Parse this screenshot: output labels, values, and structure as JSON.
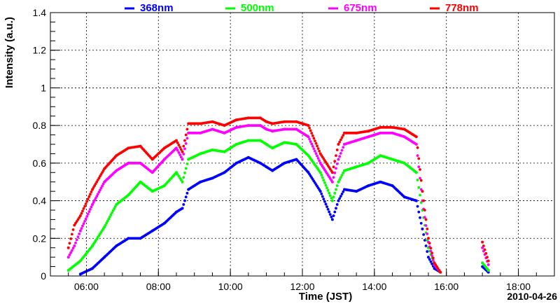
{
  "chart_data": {
    "type": "scatter",
    "xlabel": "Time (JST)",
    "ylabel": "Intensity (a.u.)",
    "xlim": [
      "05:00",
      "19:00"
    ],
    "ylim": [
      0,
      1.4
    ],
    "xticks": [
      "06:00",
      "08:00",
      "10:00",
      "12:00",
      "14:00",
      "16:00",
      "18:00"
    ],
    "yticks": [
      "0",
      "0.2",
      "0.4",
      "0.6",
      "0.8",
      "1",
      "1.2",
      "1.4"
    ],
    "grid": true,
    "legend_placement": "top",
    "date_label": "2010-04-26",
    "series": [
      {
        "name": "368nm",
        "color": "#0000ff",
        "points": [
          [
            "05:50",
            0.01
          ],
          [
            "06:10",
            0.04
          ],
          [
            "06:30",
            0.1
          ],
          [
            "06:50",
            0.16
          ],
          [
            "07:10",
            0.2
          ],
          [
            "07:30",
            0.2
          ],
          [
            "07:50",
            0.24
          ],
          [
            "08:10",
            0.28
          ],
          [
            "08:30",
            0.34
          ],
          [
            "08:40",
            0.36
          ],
          [
            "08:50",
            0.46
          ],
          [
            "09:10",
            0.5
          ],
          [
            "09:30",
            0.52
          ],
          [
            "09:50",
            0.55
          ],
          [
            "10:10",
            0.6
          ],
          [
            "10:30",
            0.63
          ],
          [
            "10:50",
            0.6
          ],
          [
            "11:00",
            0.58
          ],
          [
            "11:10",
            0.56
          ],
          [
            "11:30",
            0.6
          ],
          [
            "11:50",
            0.62
          ],
          [
            "12:10",
            0.55
          ],
          [
            "12:30",
            0.45
          ],
          [
            "12:50",
            0.3
          ],
          [
            "13:00",
            0.4
          ],
          [
            "13:10",
            0.46
          ],
          [
            "13:30",
            0.45
          ],
          [
            "13:50",
            0.48
          ],
          [
            "14:10",
            0.5
          ],
          [
            "14:30",
            0.48
          ],
          [
            "14:50",
            0.42
          ],
          [
            "15:10",
            0.4
          ],
          [
            "15:20",
            0.25
          ],
          [
            "15:30",
            0.1
          ],
          [
            "15:40",
            0.04
          ],
          [
            "15:50",
            0.02
          ],
          [
            "17:00",
            0.05
          ],
          [
            "17:10",
            0.02
          ]
        ]
      },
      {
        "name": "500nm",
        "color": "#00ff00",
        "points": [
          [
            "05:30",
            0.03
          ],
          [
            "05:50",
            0.08
          ],
          [
            "06:10",
            0.16
          ],
          [
            "06:30",
            0.26
          ],
          [
            "06:50",
            0.38
          ],
          [
            "07:10",
            0.43
          ],
          [
            "07:30",
            0.5
          ],
          [
            "07:50",
            0.45
          ],
          [
            "08:10",
            0.48
          ],
          [
            "08:30",
            0.55
          ],
          [
            "08:40",
            0.5
          ],
          [
            "08:50",
            0.62
          ],
          [
            "09:10",
            0.65
          ],
          [
            "09:30",
            0.67
          ],
          [
            "09:50",
            0.66
          ],
          [
            "10:10",
            0.7
          ],
          [
            "10:30",
            0.72
          ],
          [
            "10:50",
            0.72
          ],
          [
            "11:00",
            0.7
          ],
          [
            "11:10",
            0.68
          ],
          [
            "11:30",
            0.71
          ],
          [
            "11:50",
            0.7
          ],
          [
            "12:10",
            0.64
          ],
          [
            "12:30",
            0.55
          ],
          [
            "12:50",
            0.4
          ],
          [
            "13:00",
            0.5
          ],
          [
            "13:10",
            0.56
          ],
          [
            "13:30",
            0.58
          ],
          [
            "13:50",
            0.6
          ],
          [
            "14:10",
            0.64
          ],
          [
            "14:30",
            0.62
          ],
          [
            "14:50",
            0.6
          ],
          [
            "15:10",
            0.55
          ],
          [
            "15:20",
            0.35
          ],
          [
            "15:30",
            0.15
          ],
          [
            "15:40",
            0.06
          ],
          [
            "15:50",
            0.02
          ],
          [
            "17:00",
            0.07
          ],
          [
            "17:10",
            0.03
          ]
        ]
      },
      {
        "name": "675nm",
        "color": "#ff00ff",
        "points": [
          [
            "05:30",
            0.1
          ],
          [
            "05:40",
            0.16
          ],
          [
            "05:50",
            0.24
          ],
          [
            "06:10",
            0.38
          ],
          [
            "06:30",
            0.5
          ],
          [
            "06:50",
            0.56
          ],
          [
            "07:10",
            0.6
          ],
          [
            "07:30",
            0.6
          ],
          [
            "07:50",
            0.55
          ],
          [
            "08:10",
            0.62
          ],
          [
            "08:30",
            0.68
          ],
          [
            "08:40",
            0.62
          ],
          [
            "08:50",
            0.76
          ],
          [
            "09:10",
            0.76
          ],
          [
            "09:30",
            0.78
          ],
          [
            "09:50",
            0.76
          ],
          [
            "10:10",
            0.79
          ],
          [
            "10:30",
            0.8
          ],
          [
            "10:50",
            0.8
          ],
          [
            "11:00",
            0.78
          ],
          [
            "11:10",
            0.77
          ],
          [
            "11:30",
            0.78
          ],
          [
            "11:50",
            0.78
          ],
          [
            "12:10",
            0.74
          ],
          [
            "12:30",
            0.6
          ],
          [
            "12:50",
            0.5
          ],
          [
            "13:00",
            0.62
          ],
          [
            "13:10",
            0.7
          ],
          [
            "13:30",
            0.72
          ],
          [
            "13:50",
            0.74
          ],
          [
            "14:10",
            0.76
          ],
          [
            "14:30",
            0.76
          ],
          [
            "14:50",
            0.74
          ],
          [
            "15:10",
            0.7
          ],
          [
            "15:20",
            0.4
          ],
          [
            "15:30",
            0.18
          ],
          [
            "15:40",
            0.06
          ],
          [
            "15:50",
            0.02
          ],
          [
            "17:00",
            0.15
          ],
          [
            "17:10",
            0.06
          ]
        ]
      },
      {
        "name": "778nm",
        "color": "#ff0000",
        "points": [
          [
            "05:30",
            0.15
          ],
          [
            "05:40",
            0.27
          ],
          [
            "05:50",
            0.32
          ],
          [
            "06:10",
            0.46
          ],
          [
            "06:30",
            0.57
          ],
          [
            "06:50",
            0.64
          ],
          [
            "07:10",
            0.68
          ],
          [
            "07:30",
            0.69
          ],
          [
            "07:50",
            0.62
          ],
          [
            "08:10",
            0.68
          ],
          [
            "08:30",
            0.72
          ],
          [
            "08:40",
            0.66
          ],
          [
            "08:50",
            0.81
          ],
          [
            "09:10",
            0.81
          ],
          [
            "09:30",
            0.82
          ],
          [
            "09:50",
            0.8
          ],
          [
            "10:10",
            0.83
          ],
          [
            "10:30",
            0.84
          ],
          [
            "10:50",
            0.84
          ],
          [
            "11:00",
            0.82
          ],
          [
            "11:10",
            0.81
          ],
          [
            "11:30",
            0.82
          ],
          [
            "11:50",
            0.82
          ],
          [
            "12:10",
            0.8
          ],
          [
            "12:30",
            0.65
          ],
          [
            "12:50",
            0.55
          ],
          [
            "13:00",
            0.7
          ],
          [
            "13:10",
            0.76
          ],
          [
            "13:30",
            0.76
          ],
          [
            "13:50",
            0.77
          ],
          [
            "14:10",
            0.79
          ],
          [
            "14:30",
            0.79
          ],
          [
            "14:50",
            0.78
          ],
          [
            "15:10",
            0.74
          ],
          [
            "15:20",
            0.45
          ],
          [
            "15:30",
            0.2
          ],
          [
            "15:40",
            0.07
          ],
          [
            "15:50",
            0.02
          ],
          [
            "17:00",
            0.18
          ],
          [
            "17:10",
            0.08
          ]
        ]
      }
    ]
  }
}
